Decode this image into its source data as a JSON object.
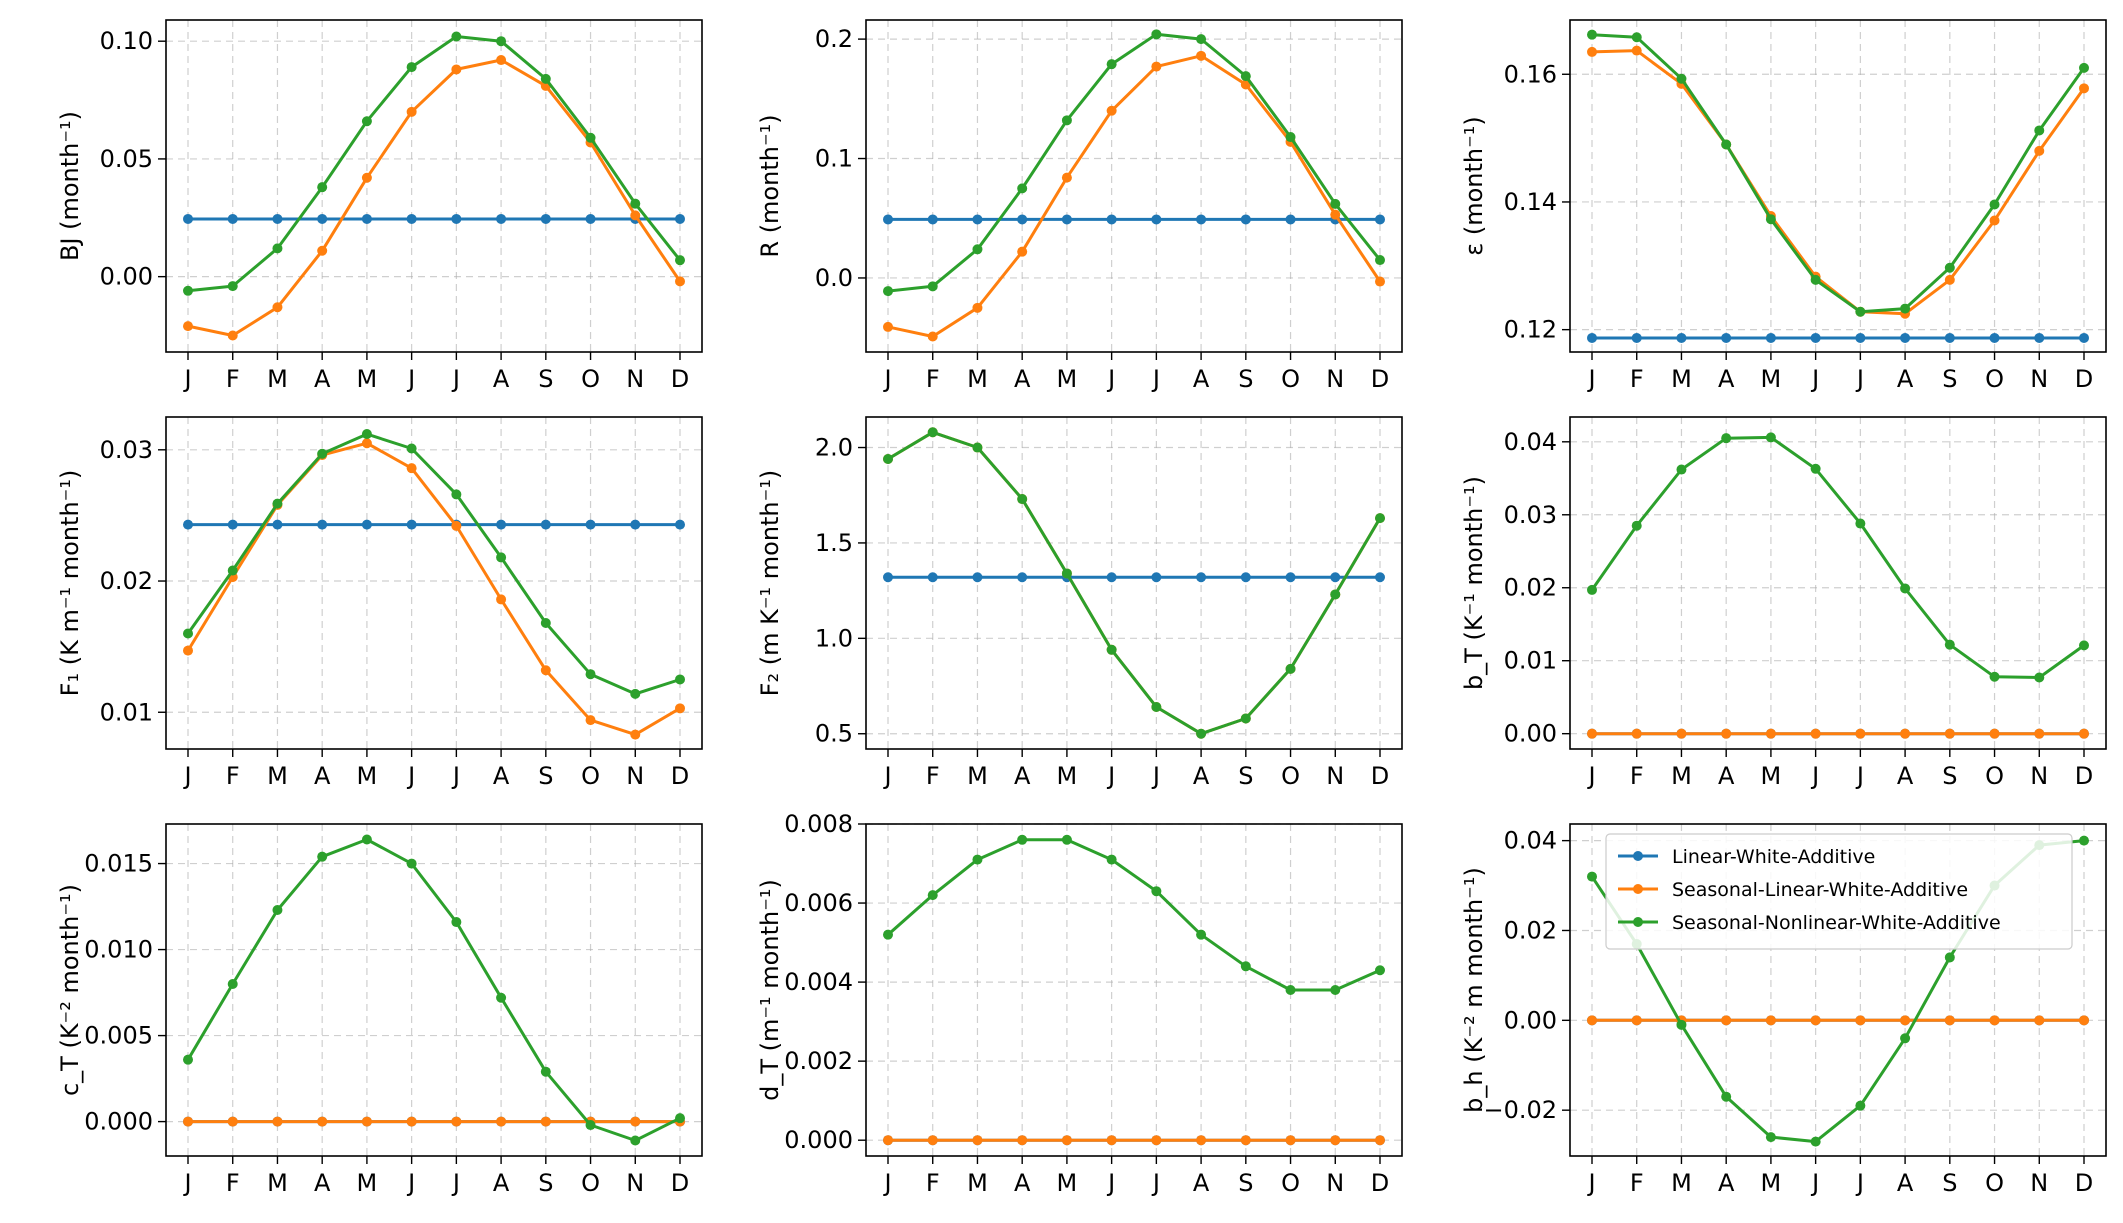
{
  "chart_data": [
    {
      "type": "line",
      "ylabel": "BJ (month⁻¹)",
      "categories": [
        "J",
        "F",
        "M",
        "A",
        "M",
        "J",
        "J",
        "A",
        "S",
        "O",
        "N",
        "D"
      ],
      "ylim": [
        -0.032,
        0.109
      ],
      "yticks": [
        0.0,
        0.05,
        0.1
      ],
      "ytick_labels": [
        "0.00",
        "0.05",
        "0.10"
      ],
      "series": [
        {
          "name": "Linear-White-Additive",
          "values": [
            0.0245,
            0.0245,
            0.0245,
            0.0245,
            0.0245,
            0.0245,
            0.0245,
            0.0245,
            0.0245,
            0.0245,
            0.0245,
            0.0245
          ]
        },
        {
          "name": "Seasonal-Linear-White-Additive",
          "values": [
            -0.021,
            -0.025,
            -0.013,
            0.011,
            0.042,
            0.07,
            0.088,
            0.092,
            0.081,
            0.057,
            0.026,
            -0.002
          ]
        },
        {
          "name": "Seasonal-Nonlinear-White-Additive",
          "values": [
            -0.006,
            -0.004,
            0.012,
            0.038,
            0.066,
            0.089,
            0.102,
            0.1,
            0.084,
            0.059,
            0.031,
            0.007
          ]
        }
      ]
    },
    {
      "type": "line",
      "ylabel": "R (month⁻¹)",
      "categories": [
        "J",
        "F",
        "M",
        "A",
        "M",
        "J",
        "J",
        "A",
        "S",
        "O",
        "N",
        "D"
      ],
      "ylim": [
        -0.062,
        0.216
      ],
      "yticks": [
        0.0,
        0.1,
        0.2
      ],
      "ytick_labels": [
        "0.0",
        "0.1",
        "0.2"
      ],
      "series": [
        {
          "name": "Linear-White-Additive",
          "values": [
            0.049,
            0.049,
            0.049,
            0.049,
            0.049,
            0.049,
            0.049,
            0.049,
            0.049,
            0.049,
            0.049,
            0.049
          ]
        },
        {
          "name": "Seasonal-Linear-White-Additive",
          "values": [
            -0.041,
            -0.049,
            -0.025,
            0.022,
            0.084,
            0.14,
            0.177,
            0.186,
            0.162,
            0.114,
            0.053,
            -0.003
          ]
        },
        {
          "name": "Seasonal-Nonlinear-White-Additive",
          "values": [
            -0.011,
            -0.007,
            0.024,
            0.075,
            0.132,
            0.179,
            0.204,
            0.2,
            0.169,
            0.118,
            0.062,
            0.015
          ]
        }
      ]
    },
    {
      "type": "line",
      "ylabel": "ε (month⁻¹)",
      "categories": [
        "J",
        "F",
        "M",
        "A",
        "M",
        "J",
        "J",
        "A",
        "S",
        "O",
        "N",
        "D"
      ],
      "ylim": [
        0.1165,
        0.1685
      ],
      "yticks": [
        0.12,
        0.14,
        0.16
      ],
      "ytick_labels": [
        "0.12",
        "0.14",
        "0.16"
      ],
      "series": [
        {
          "name": "Linear-White-Additive",
          "values": [
            0.1187,
            0.1187,
            0.1187,
            0.1187,
            0.1187,
            0.1187,
            0.1187,
            0.1187,
            0.1187,
            0.1187,
            0.1187,
            0.1187
          ]
        },
        {
          "name": "Seasonal-Linear-White-Additive",
          "values": [
            0.1635,
            0.1637,
            0.1585,
            0.149,
            0.1378,
            0.1283,
            0.1228,
            0.1225,
            0.1278,
            0.1371,
            0.148,
            0.1578
          ]
        },
        {
          "name": "Seasonal-Nonlinear-White-Additive",
          "values": [
            0.1662,
            0.1658,
            0.1593,
            0.149,
            0.1373,
            0.1278,
            0.1228,
            0.1233,
            0.1297,
            0.1396,
            0.1512,
            0.161
          ]
        }
      ]
    },
    {
      "type": "line",
      "ylabel": "F₁ (K m⁻¹ month⁻¹)",
      "categories": [
        "J",
        "F",
        "M",
        "A",
        "M",
        "J",
        "J",
        "A",
        "S",
        "O",
        "N",
        "D"
      ],
      "ylim": [
        0.0072,
        0.0325
      ],
      "yticks": [
        0.01,
        0.02,
        0.03
      ],
      "ytick_labels": [
        "0.01",
        "0.02",
        "0.03"
      ],
      "series": [
        {
          "name": "Linear-White-Additive",
          "values": [
            0.0243,
            0.0243,
            0.0243,
            0.0243,
            0.0243,
            0.0243,
            0.0243,
            0.0243,
            0.0243,
            0.0243,
            0.0243,
            0.0243
          ]
        },
        {
          "name": "Seasonal-Linear-White-Additive",
          "values": [
            0.0147,
            0.0203,
            0.0258,
            0.0296,
            0.0305,
            0.0286,
            0.0242,
            0.0186,
            0.0132,
            0.0094,
            0.0083,
            0.0103
          ]
        },
        {
          "name": "Seasonal-Nonlinear-White-Additive",
          "values": [
            0.016,
            0.0208,
            0.0259,
            0.0297,
            0.0312,
            0.0301,
            0.0266,
            0.0218,
            0.0168,
            0.0129,
            0.0114,
            0.0125
          ]
        }
      ]
    },
    {
      "type": "line",
      "ylabel": "F₂ (m K⁻¹ month⁻¹)",
      "categories": [
        "J",
        "F",
        "M",
        "A",
        "M",
        "J",
        "J",
        "A",
        "S",
        "O",
        "N",
        "D"
      ],
      "ylim": [
        0.42,
        2.16
      ],
      "yticks": [
        0.5,
        1.0,
        1.5,
        2.0
      ],
      "ytick_labels": [
        "0.5",
        "1.0",
        "1.5",
        "2.0"
      ],
      "series": [
        {
          "name": "Linear-White-Additive",
          "values": [
            1.32,
            1.32,
            1.32,
            1.32,
            1.32,
            1.32,
            1.32,
            1.32,
            1.32,
            1.32,
            1.32,
            1.32
          ]
        },
        {
          "name": "Seasonal-Linear-White-Additive",
          "values": [
            1.94,
            2.08,
            2.0,
            1.73,
            1.34,
            0.94,
            0.64,
            0.5,
            0.58,
            0.84,
            1.23,
            1.63
          ]
        },
        {
          "name": "Seasonal-Nonlinear-White-Additive",
          "values": [
            1.94,
            2.08,
            2.0,
            1.73,
            1.34,
            0.94,
            0.64,
            0.5,
            0.58,
            0.84,
            1.23,
            1.63
          ]
        }
      ]
    },
    {
      "type": "line",
      "ylabel": "b_T (K⁻¹ month⁻¹)",
      "categories": [
        "J",
        "F",
        "M",
        "A",
        "M",
        "J",
        "J",
        "A",
        "S",
        "O",
        "N",
        "D"
      ],
      "ylim": [
        -0.0021,
        0.0434
      ],
      "yticks": [
        0.0,
        0.01,
        0.02,
        0.03,
        0.04
      ],
      "ytick_labels": [
        "0.00",
        "0.01",
        "0.02",
        "0.03",
        "0.04"
      ],
      "series": [
        {
          "name": "Linear-White-Additive",
          "values": [
            0.0,
            0.0,
            0.0,
            0.0,
            0.0,
            0.0,
            0.0,
            0.0,
            0.0,
            0.0,
            0.0,
            0.0
          ]
        },
        {
          "name": "Seasonal-Linear-White-Additive",
          "values": [
            0.0,
            0.0,
            0.0,
            0.0,
            0.0,
            0.0,
            0.0,
            0.0,
            0.0,
            0.0,
            0.0,
            0.0
          ]
        },
        {
          "name": "Seasonal-Nonlinear-White-Additive",
          "values": [
            0.0197,
            0.0285,
            0.0362,
            0.0405,
            0.0406,
            0.0363,
            0.0288,
            0.0199,
            0.0122,
            0.0078,
            0.0077,
            0.0121
          ]
        }
      ]
    },
    {
      "type": "line",
      "ylabel": "c_T (K⁻² month⁻¹)",
      "categories": [
        "J",
        "F",
        "M",
        "A",
        "M",
        "J",
        "J",
        "A",
        "S",
        "O",
        "N",
        "D"
      ],
      "ylim": [
        -0.002,
        0.0173
      ],
      "yticks": [
        0.0,
        0.005,
        0.01,
        0.015
      ],
      "ytick_labels": [
        "0.000",
        "0.005",
        "0.010",
        "0.015"
      ],
      "series": [
        {
          "name": "Linear-White-Additive",
          "values": [
            0.0,
            0.0,
            0.0,
            0.0,
            0.0,
            0.0,
            0.0,
            0.0,
            0.0,
            0.0,
            0.0,
            0.0
          ]
        },
        {
          "name": "Seasonal-Linear-White-Additive",
          "values": [
            0.0,
            0.0,
            0.0,
            0.0,
            0.0,
            0.0,
            0.0,
            0.0,
            0.0,
            0.0,
            0.0,
            0.0
          ]
        },
        {
          "name": "Seasonal-Nonlinear-White-Additive",
          "values": [
            0.0036,
            0.008,
            0.0123,
            0.0154,
            0.0164,
            0.015,
            0.0116,
            0.0072,
            0.0029,
            -0.0002,
            -0.0011,
            0.0002
          ]
        }
      ]
    },
    {
      "type": "line",
      "ylabel": "d_T (m⁻¹ month⁻¹)",
      "categories": [
        "J",
        "F",
        "M",
        "A",
        "M",
        "J",
        "J",
        "A",
        "S",
        "O",
        "N",
        "D"
      ],
      "ylim": [
        -0.0004,
        0.008
      ],
      "yticks": [
        0.0,
        0.002,
        0.004,
        0.006,
        0.008
      ],
      "ytick_labels": [
        "0.000",
        "0.002",
        "0.004",
        "0.006",
        "0.008"
      ],
      "series": [
        {
          "name": "Linear-White-Additive",
          "values": [
            0.0,
            0.0,
            0.0,
            0.0,
            0.0,
            0.0,
            0.0,
            0.0,
            0.0,
            0.0,
            0.0,
            0.0
          ]
        },
        {
          "name": "Seasonal-Linear-White-Additive",
          "values": [
            0.0,
            0.0,
            0.0,
            0.0,
            0.0,
            0.0,
            0.0,
            0.0,
            0.0,
            0.0,
            0.0,
            0.0
          ]
        },
        {
          "name": "Seasonal-Nonlinear-White-Additive",
          "values": [
            0.0052,
            0.0062,
            0.0071,
            0.0076,
            0.0076,
            0.0071,
            0.0063,
            0.0052,
            0.0044,
            0.0038,
            0.0038,
            0.0043
          ]
        }
      ]
    },
    {
      "type": "line",
      "ylabel": "b_h (K⁻² m month⁻¹)",
      "categories": [
        "J",
        "F",
        "M",
        "A",
        "M",
        "J",
        "J",
        "A",
        "S",
        "O",
        "N",
        "D"
      ],
      "ylim": [
        -0.0302,
        0.0437
      ],
      "yticks": [
        -0.02,
        0.0,
        0.02,
        0.04
      ],
      "ytick_labels": [
        "−0.02",
        "0.00",
        "0.02",
        "0.04"
      ],
      "legend": "top-right",
      "series": [
        {
          "name": "Linear-White-Additive",
          "values": [
            0.0,
            0.0,
            0.0,
            0.0,
            0.0,
            0.0,
            0.0,
            0.0,
            0.0,
            0.0,
            0.0,
            0.0
          ]
        },
        {
          "name": "Seasonal-Linear-White-Additive",
          "values": [
            0.0,
            0.0,
            0.0,
            0.0,
            0.0,
            0.0,
            0.0,
            0.0,
            0.0,
            0.0,
            0.0,
            0.0
          ]
        },
        {
          "name": "Seasonal-Nonlinear-White-Additive",
          "values": [
            0.032,
            0.017,
            -0.001,
            -0.017,
            -0.026,
            -0.027,
            -0.019,
            -0.004,
            0.014,
            0.03,
            0.039,
            0.04
          ]
        }
      ]
    }
  ],
  "legend": {
    "entries": [
      "Linear-White-Additive",
      "Seasonal-Linear-White-Additive",
      "Seasonal-Nonlinear-White-Additive"
    ]
  },
  "colors": {
    "Linear-White-Additive": "#1f77b4",
    "Seasonal-Linear-White-Additive": "#ff7f0e",
    "Seasonal-Nonlinear-White-Additive": "#2ca02c"
  }
}
